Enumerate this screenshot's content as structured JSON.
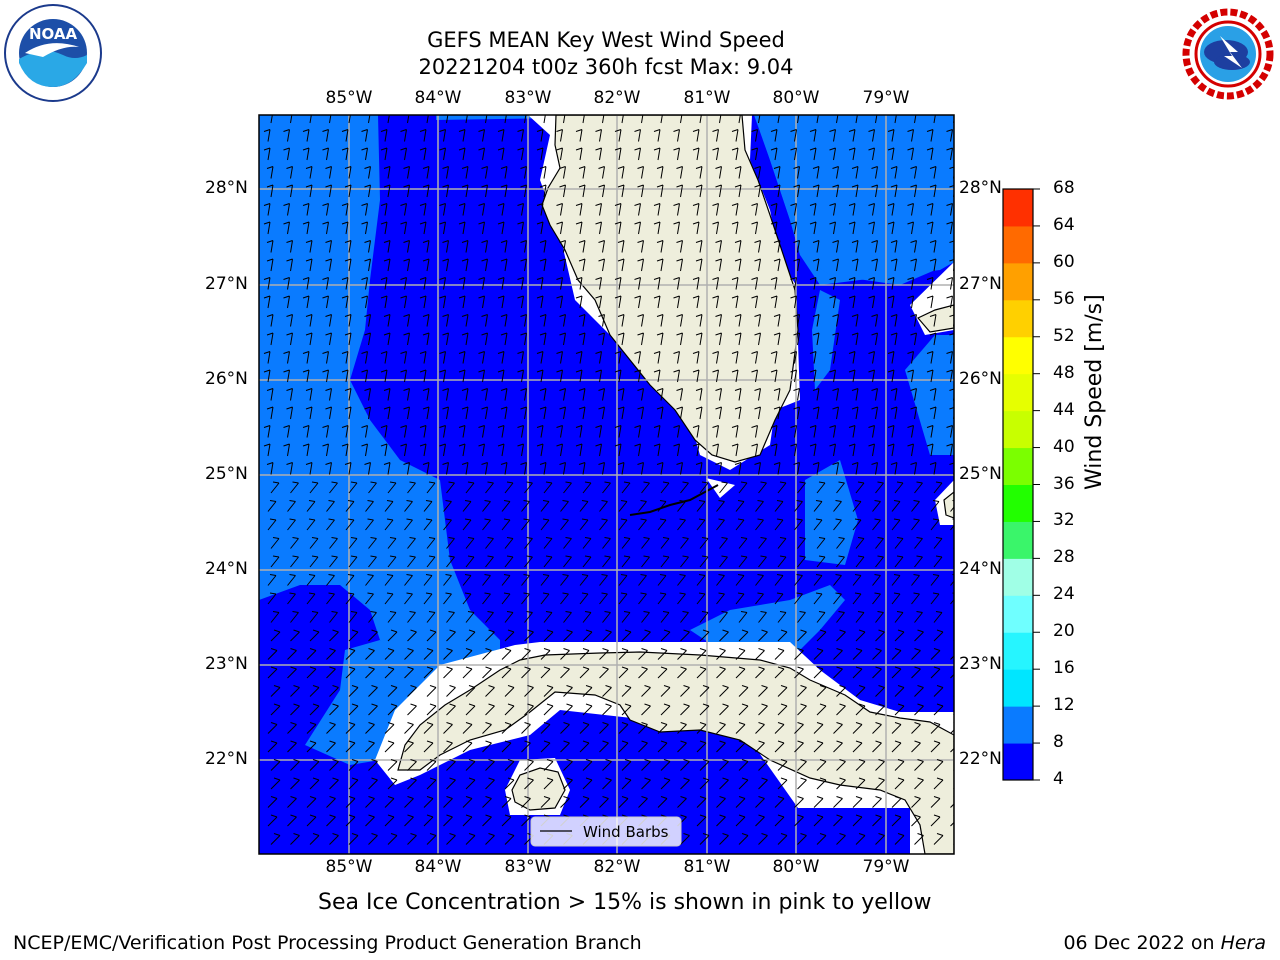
{
  "header": {
    "title": "GEFS MEAN Key West Wind Speed",
    "subtitle": "20221204 t00z 360h fcst   Max: 9.04"
  },
  "logos": {
    "left": {
      "name": "noaa-logo",
      "text": "NOAA",
      "ring_text": "NATIONAL OCEANIC AND ATMOSPHERIC ADMINISTRATION · U.S. DEPARTMENT OF COMMERCE"
    },
    "right": {
      "name": "nws-logo",
      "ring_text": "NATIONAL WEATHER SERVICE"
    }
  },
  "map": {
    "lon_labels": [
      "85°W",
      "84°W",
      "83°W",
      "82°W",
      "81°W",
      "80°W",
      "79°W"
    ],
    "lat_labels": [
      "28°N",
      "27°N",
      "26°N",
      "25°N",
      "24°N",
      "23°N",
      "22°N"
    ],
    "legend": {
      "label": "Wind Barbs"
    },
    "colors": {
      "ocean_8_12": "#0a7bff",
      "ocean_4_8": "#0000ff",
      "land": "#eeeedc",
      "grid": "#b0b0b0"
    }
  },
  "colorbar": {
    "label": "Wind Speed [m/s]",
    "ticks": [
      "4",
      "8",
      "12",
      "16",
      "20",
      "24",
      "28",
      "32",
      "36",
      "40",
      "44",
      "48",
      "52",
      "56",
      "60",
      "64",
      "68"
    ],
    "colors": [
      "#0000ff",
      "#0a7bff",
      "#00e6ff",
      "#26f5ff",
      "#6fffff",
      "#a0ffe6",
      "#3af56a",
      "#22ff00",
      "#7bff00",
      "#c8ff00",
      "#e6ff00",
      "#ffff00",
      "#ffd000",
      "#ffa000",
      "#ff6a00",
      "#ff3000",
      "#ff0000"
    ]
  },
  "note": "Sea Ice Concentration > 15% is shown in pink to yellow",
  "footer": {
    "left": "NCEP/EMC/Verification Post Processing Product Generation Branch",
    "right_prefix": "06 Dec 2022 on ",
    "right_host": "Hera"
  }
}
